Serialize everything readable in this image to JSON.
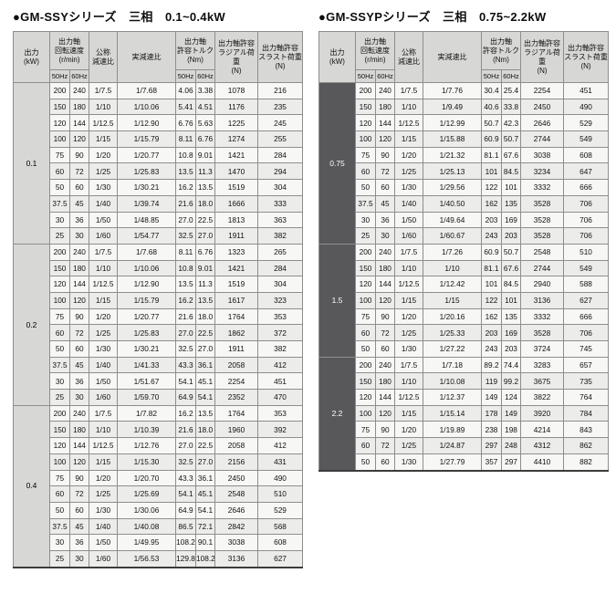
{
  "colors": {
    "header_bg": "#d7d7d6",
    "kw_light_bg": "#d7d7d6",
    "kw_dark_bg": "#58585a",
    "row_even": "#f7f7f5",
    "row_odd": "#ececeb",
    "grid_line": "#8e8e8e",
    "frame_line": "#3c3c3c"
  },
  "header": {
    "output": "出力\n(kW)",
    "speed": "出力軸\n回転速度\n(r/min)",
    "nominal": "公称\n減速比",
    "actual": "実減速比",
    "torque": "出力軸\n許容トルク\n(Nm)",
    "radial": "出力軸許容\nラジアル荷重\n(N)",
    "thrust": "出力軸許容\nスラスト荷重\n(N)",
    "hz50": "50Hz",
    "hz60": "60Hz"
  },
  "tables": [
    {
      "title": "●GM-SSYシリーズ　三相　0.1~0.4kW",
      "kw_style": "light",
      "groups": [
        {
          "kw": "0.1",
          "rows": [
            [
              "200",
              "240",
              "1/7.5",
              "1/7.68",
              "4.06",
              "3.38",
              "1078",
              "216"
            ],
            [
              "150",
              "180",
              "1/10",
              "1/10.06",
              "5.41",
              "4.51",
              "1176",
              "235"
            ],
            [
              "120",
              "144",
              "1/12.5",
              "1/12.90",
              "6.76",
              "5.63",
              "1225",
              "245"
            ],
            [
              "100",
              "120",
              "1/15",
              "1/15.79",
              "8.11",
              "6.76",
              "1274",
              "255"
            ],
            [
              "75",
              "90",
              "1/20",
              "1/20.77",
              "10.8",
              "9.01",
              "1421",
              "284"
            ],
            [
              "60",
              "72",
              "1/25",
              "1/25.83",
              "13.5",
              "11.3",
              "1470",
              "294"
            ],
            [
              "50",
              "60",
              "1/30",
              "1/30.21",
              "16.2",
              "13.5",
              "1519",
              "304"
            ],
            [
              "37.5",
              "45",
              "1/40",
              "1/39.74",
              "21.6",
              "18.0",
              "1666",
              "333"
            ],
            [
              "30",
              "36",
              "1/50",
              "1/48.85",
              "27.0",
              "22.5",
              "1813",
              "363"
            ],
            [
              "25",
              "30",
              "1/60",
              "1/54.77",
              "32.5",
              "27.0",
              "1911",
              "382"
            ]
          ]
        },
        {
          "kw": "0.2",
          "rows": [
            [
              "200",
              "240",
              "1/7.5",
              "1/7.68",
              "8.11",
              "6.76",
              "1323",
              "265"
            ],
            [
              "150",
              "180",
              "1/10",
              "1/10.06",
              "10.8",
              "9.01",
              "1421",
              "284"
            ],
            [
              "120",
              "144",
              "1/12.5",
              "1/12.90",
              "13.5",
              "11.3",
              "1519",
              "304"
            ],
            [
              "100",
              "120",
              "1/15",
              "1/15.79",
              "16.2",
              "13.5",
              "1617",
              "323"
            ],
            [
              "75",
              "90",
              "1/20",
              "1/20.77",
              "21.6",
              "18.0",
              "1764",
              "353"
            ],
            [
              "60",
              "72",
              "1/25",
              "1/25.83",
              "27.0",
              "22.5",
              "1862",
              "372"
            ],
            [
              "50",
              "60",
              "1/30",
              "1/30.21",
              "32.5",
              "27.0",
              "1911",
              "382"
            ],
            [
              "37.5",
              "45",
              "1/40",
              "1/41.33",
              "43.3",
              "36.1",
              "2058",
              "412"
            ],
            [
              "30",
              "36",
              "1/50",
              "1/51.67",
              "54.1",
              "45.1",
              "2254",
              "451"
            ],
            [
              "25",
              "30",
              "1/60",
              "1/59.70",
              "64.9",
              "54.1",
              "2352",
              "470"
            ]
          ]
        },
        {
          "kw": "0.4",
          "rows": [
            [
              "200",
              "240",
              "1/7.5",
              "1/7.82",
              "16.2",
              "13.5",
              "1764",
              "353"
            ],
            [
              "150",
              "180",
              "1/10",
              "1/10.39",
              "21.6",
              "18.0",
              "1960",
              "392"
            ],
            [
              "120",
              "144",
              "1/12.5",
              "1/12.76",
              "27.0",
              "22.5",
              "2058",
              "412"
            ],
            [
              "100",
              "120",
              "1/15",
              "1/15.30",
              "32.5",
              "27.0",
              "2156",
              "431"
            ],
            [
              "75",
              "90",
              "1/20",
              "1/20.70",
              "43.3",
              "36.1",
              "2450",
              "490"
            ],
            [
              "60",
              "72",
              "1/25",
              "1/25.69",
              "54.1",
              "45.1",
              "2548",
              "510"
            ],
            [
              "50",
              "60",
              "1/30",
              "1/30.06",
              "64.9",
              "54.1",
              "2646",
              "529"
            ],
            [
              "37.5",
              "45",
              "1/40",
              "1/40.08",
              "86.5",
              "72.1",
              "2842",
              "568"
            ],
            [
              "30",
              "36",
              "1/50",
              "1/49.95",
              "108.2",
              "90.1",
              "3038",
              "608"
            ],
            [
              "25",
              "30",
              "1/60",
              "1/56.53",
              "129.8",
              "108.2",
              "3136",
              "627"
            ]
          ]
        }
      ]
    },
    {
      "title": "●GM-SSYPシリーズ　三相　0.75~2.2kW",
      "kw_style": "dark",
      "groups": [
        {
          "kw": "0.75",
          "rows": [
            [
              "200",
              "240",
              "1/7.5",
              "1/7.76",
              "30.4",
              "25.4",
              "2254",
              "451"
            ],
            [
              "150",
              "180",
              "1/10",
              "1/9.49",
              "40.6",
              "33.8",
              "2450",
              "490"
            ],
            [
              "120",
              "144",
              "1/12.5",
              "1/12.99",
              "50.7",
              "42.3",
              "2646",
              "529"
            ],
            [
              "100",
              "120",
              "1/15",
              "1/15.88",
              "60.9",
              "50.7",
              "2744",
              "549"
            ],
            [
              "75",
              "90",
              "1/20",
              "1/21.32",
              "81.1",
              "67.6",
              "3038",
              "608"
            ],
            [
              "60",
              "72",
              "1/25",
              "1/25.13",
              "101",
              "84.5",
              "3234",
              "647"
            ],
            [
              "50",
              "60",
              "1/30",
              "1/29.56",
              "122",
              "101",
              "3332",
              "666"
            ],
            [
              "37.5",
              "45",
              "1/40",
              "1/40.50",
              "162",
              "135",
              "3528",
              "706"
            ],
            [
              "30",
              "36",
              "1/50",
              "1/49.64",
              "203",
              "169",
              "3528",
              "706"
            ],
            [
              "25",
              "30",
              "1/60",
              "1/60.67",
              "243",
              "203",
              "3528",
              "706"
            ]
          ]
        },
        {
          "kw": "1.5",
          "rows": [
            [
              "200",
              "240",
              "1/7.5",
              "1/7.26",
              "60.9",
              "50.7",
              "2548",
              "510"
            ],
            [
              "150",
              "180",
              "1/10",
              "1/10",
              "81.1",
              "67.6",
              "2744",
              "549"
            ],
            [
              "120",
              "144",
              "1/12.5",
              "1/12.42",
              "101",
              "84.5",
              "2940",
              "588"
            ],
            [
              "100",
              "120",
              "1/15",
              "1/15",
              "122",
              "101",
              "3136",
              "627"
            ],
            [
              "75",
              "90",
              "1/20",
              "1/20.16",
              "162",
              "135",
              "3332",
              "666"
            ],
            [
              "60",
              "72",
              "1/25",
              "1/25.33",
              "203",
              "169",
              "3528",
              "706"
            ],
            [
              "50",
              "60",
              "1/30",
              "1/27.22",
              "243",
              "203",
              "3724",
              "745"
            ]
          ]
        },
        {
          "kw": "2.2",
          "rows": [
            [
              "200",
              "240",
              "1/7.5",
              "1/7.18",
              "89.2",
              "74.4",
              "3283",
              "657"
            ],
            [
              "150",
              "180",
              "1/10",
              "1/10.08",
              "119",
              "99.2",
              "3675",
              "735"
            ],
            [
              "120",
              "144",
              "1/12.5",
              "1/12.37",
              "149",
              "124",
              "3822",
              "764"
            ],
            [
              "100",
              "120",
              "1/15",
              "1/15.14",
              "178",
              "149",
              "3920",
              "784"
            ],
            [
              "75",
              "90",
              "1/20",
              "1/19.89",
              "238",
              "198",
              "4214",
              "843"
            ],
            [
              "60",
              "72",
              "1/25",
              "1/24.87",
              "297",
              "248",
              "4312",
              "862"
            ],
            [
              "50",
              "60",
              "1/30",
              "1/27.79",
              "357",
              "297",
              "4410",
              "882"
            ]
          ]
        }
      ]
    }
  ]
}
